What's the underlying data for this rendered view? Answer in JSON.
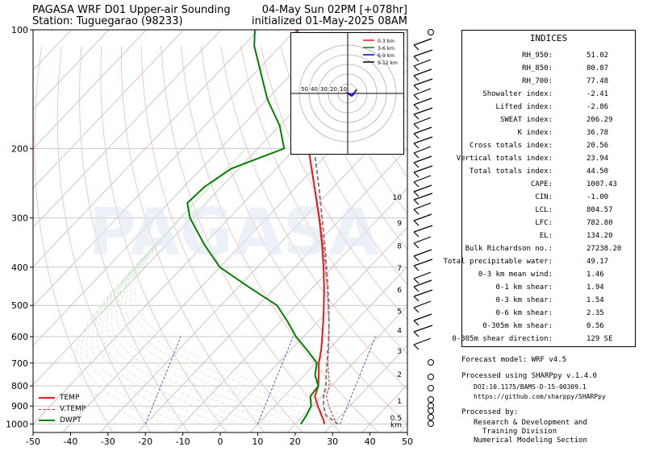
{
  "header": {
    "title_left_1": "PAGASA WRF D01 Upper-air Sounding",
    "title_left_2": "Station: Tuguegarao (98233)",
    "title_right_1": "04-May Sun 02PM [+078hr]",
    "title_right_2": "initialized 01-May-2025 08AM"
  },
  "watermark": "PAGASA",
  "legend": {
    "temp": "TEMP",
    "vtemp": "V.TEMP",
    "dwpt": "DWPT"
  },
  "hodograph": {
    "legend": [
      "0-3 km",
      "3-6 km",
      "6-9 km",
      "9-12 km"
    ],
    "rings": [
      "50",
      "40",
      "30",
      "20",
      "10"
    ],
    "colors": [
      "#e41a1c",
      "#008000",
      "#0000cc",
      "#000000"
    ]
  },
  "height_labels": [
    "10",
    "9",
    "8",
    "7",
    "6",
    "5",
    "4",
    "3",
    "2",
    "1",
    "0.5",
    "km"
  ],
  "indices": {
    "title": "INDICES",
    "rows": [
      {
        "label": "RH_950:",
        "value": "51.02"
      },
      {
        "label": "RH_850:",
        "value": "80.87"
      },
      {
        "label": "RH_700:",
        "value": "77.48"
      },
      {
        "label": "Showalter index:",
        "value": "-2.41"
      },
      {
        "label": "Lifted index:",
        "value": "-2.86"
      },
      {
        "label": "SWEAT index:",
        "value": "206.29"
      },
      {
        "label": "K index:",
        "value": "36.78"
      },
      {
        "label": "Cross totals index:",
        "value": "20.56"
      },
      {
        "label": "Vertical totals index:",
        "value": "23.94"
      },
      {
        "label": "Total totals index:",
        "value": "44.50"
      },
      {
        "label": "CAPE:",
        "value": "1007.43"
      },
      {
        "label": "CIN:",
        "value": "-1.00"
      },
      {
        "label": "LCL:",
        "value": "804.57"
      },
      {
        "label": "LFC:",
        "value": "782.80"
      },
      {
        "label": "EL:",
        "value": "134.20"
      },
      {
        "label": "Bulk Richardson no.:",
        "value": "27238.20"
      },
      {
        "label": "Total precipitable water:",
        "value": "49.17"
      },
      {
        "label": "0-3 km mean wind:",
        "value": "1.46"
      },
      {
        "label": "0-1 km shear:",
        "value": "1.94"
      },
      {
        "label": "0-3 km shear:",
        "value": "1.54"
      },
      {
        "label": "0-6 km shear:",
        "value": "2.35"
      },
      {
        "label": "0-305m km shear:",
        "value": "0.56"
      },
      {
        "label": "0-305m shear direction:",
        "value": "129 SE"
      }
    ]
  },
  "footer": {
    "model": "Forecast model: WRF v4.5",
    "processed_using": "Processed using SHARPpy v.1.4.0",
    "doi": "DOI:10.1175/BAMS-D-15-00309.1",
    "url": "https://github.com/sharppy/SHARPpy",
    "processed_by": "Processed by:",
    "org1": "Research & Development and",
    "org2": "Training Division",
    "org3": "Numerical Modeling Section"
  },
  "chart_data": {
    "type": "line",
    "subtype": "skew-T log-P",
    "x_axis_ticks": [
      "-50",
      "-40",
      "-30",
      "-20",
      "-10",
      "0",
      "10",
      "20",
      "30",
      "40",
      "50"
    ],
    "y_axis_ticks": [
      "100",
      "200",
      "300",
      "400",
      "500",
      "600",
      "700",
      "800",
      "900",
      "1000"
    ],
    "xlim": [
      -50,
      50
    ],
    "ylim": [
      1050,
      100
    ],
    "yscale": "log",
    "series": [
      {
        "name": "TEMP",
        "color": "#e41a1c",
        "pressure": [
          1000,
          975,
          950,
          925,
          900,
          850,
          800,
          750,
          700,
          650,
          600,
          550,
          500,
          450,
          400,
          350,
          300,
          250,
          200,
          175,
          150,
          125,
          110,
          100
        ],
        "values": [
          27.8,
          26.5,
          24.8,
          23.2,
          21.5,
          18.2,
          16.5,
          13.8,
          10.8,
          8.2,
          5.0,
          1.5,
          -2.5,
          -7.0,
          -12.3,
          -18.5,
          -26.0,
          -35.2,
          -46.5,
          -53.5,
          -62.0,
          -71.0,
          -76.5,
          -79.5
        ]
      },
      {
        "name": "V.TEMP",
        "color": "#e41a1c",
        "pressure": [
          1000,
          975,
          950,
          925,
          900,
          850,
          800,
          750,
          700,
          650,
          600,
          550,
          500,
          450,
          400,
          350,
          300,
          250,
          200
        ],
        "values": [
          31.0,
          29.5,
          27.8,
          26.1,
          24.4,
          21.3,
          19.4,
          16.5,
          13.2,
          10.2,
          6.8,
          3.0,
          -1.4,
          -6.2,
          -11.8,
          -18.2,
          -25.8,
          -35.1,
          -46.5
        ]
      },
      {
        "name": "DWPT",
        "color": "#008000",
        "pressure": [
          1000,
          950,
          900,
          850,
          800,
          750,
          700,
          650,
          600,
          550,
          500,
          450,
          400,
          350,
          300,
          275,
          250,
          225,
          200,
          175,
          150,
          125,
          110,
          100
        ],
        "values": [
          21.5,
          20.8,
          19.7,
          17.0,
          16.5,
          12.8,
          10.3,
          4.5,
          -2.0,
          -8.0,
          -15.0,
          -27.0,
          -40.0,
          -50.0,
          -60.5,
          -65.0,
          -64.5,
          -62.0,
          -53.0,
          -60.0,
          -70.0,
          -80.0,
          -87.0,
          -91.0
        ]
      },
      {
        "name": "Parcel",
        "color": "#808080",
        "pressure": [
          1000,
          950,
          900,
          850,
          800,
          750,
          700,
          650,
          600,
          550,
          500,
          450,
          400,
          350,
          300,
          250,
          200,
          175,
          150,
          125,
          100
        ],
        "values": [
          31.5,
          26.0,
          23.0,
          20.5,
          18.5,
          15.8,
          13.0,
          10.0,
          6.8,
          3.0,
          -1.2,
          -6.0,
          -11.5,
          -17.8,
          -25.2,
          -34.0,
          -45.0,
          -51.5,
          -59.5,
          -68.5,
          -80.0
        ]
      }
    ]
  }
}
